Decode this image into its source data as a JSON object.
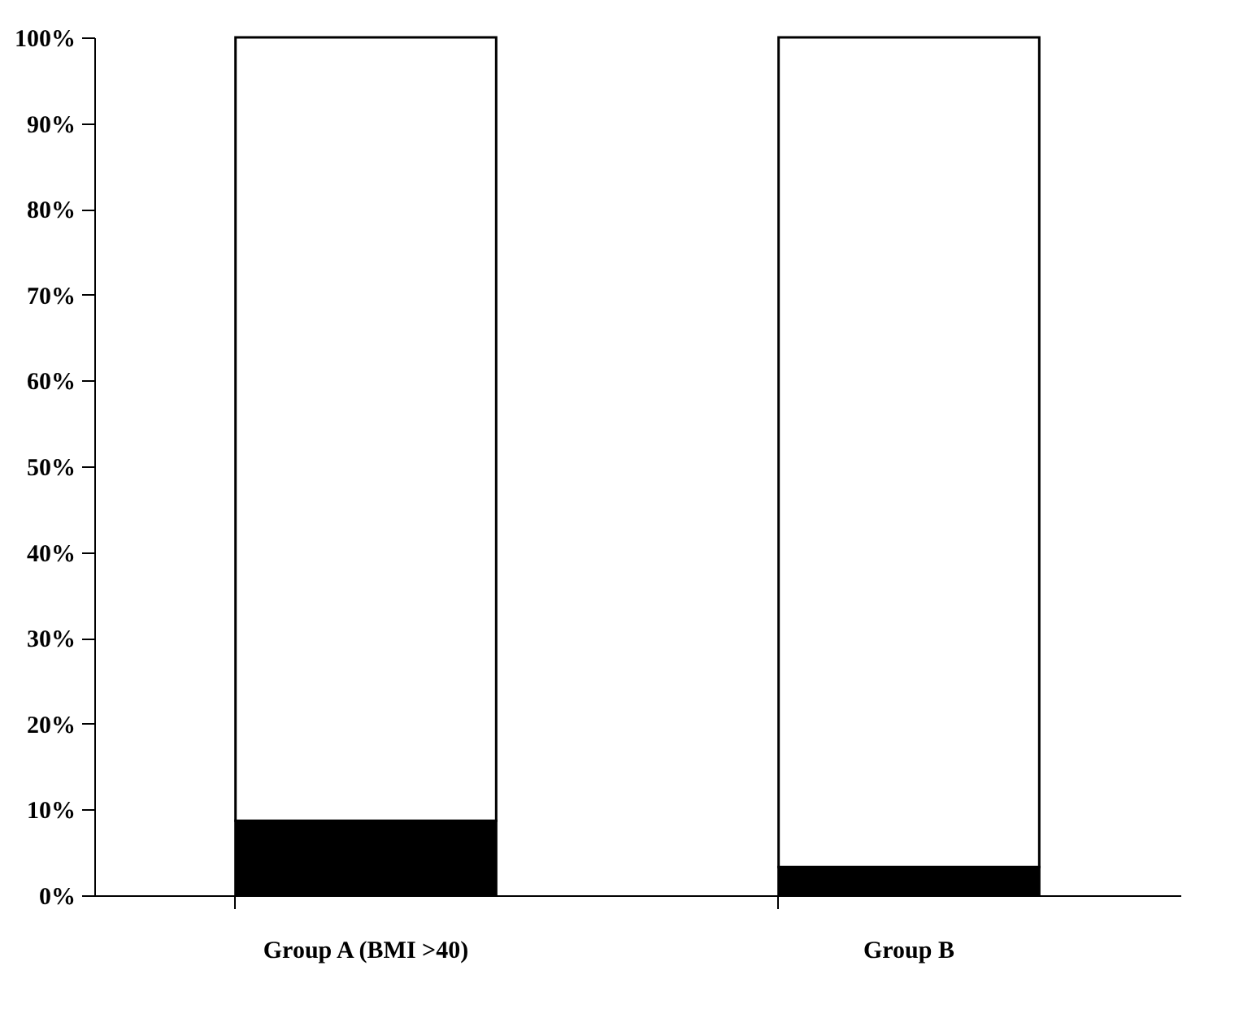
{
  "chart_data": {
    "type": "bar",
    "stacked": true,
    "categories": [
      "Group A (BMI >40)",
      "Group B"
    ],
    "series": [
      {
        "color": "#000000",
        "values": [
          8.7,
          3.3
        ]
      },
      {
        "color": "#ffffff",
        "values": [
          91.3,
          96.7
        ]
      }
    ],
    "ylim": [
      0,
      100
    ],
    "yticks": [
      {
        "value": 0,
        "label": "0%"
      },
      {
        "value": 10,
        "label": "10%"
      },
      {
        "value": 20,
        "label": "20%"
      },
      {
        "value": 30,
        "label": "30%"
      },
      {
        "value": 40,
        "label": "40%"
      },
      {
        "value": 50,
        "label": "50%"
      },
      {
        "value": 60,
        "label": "60%"
      },
      {
        "value": 70,
        "label": "70%"
      },
      {
        "value": 80,
        "label": "80%"
      },
      {
        "value": 90,
        "label": "90%"
      },
      {
        "value": 100,
        "label": "100%"
      }
    ],
    "grid": false,
    "legend": false
  }
}
